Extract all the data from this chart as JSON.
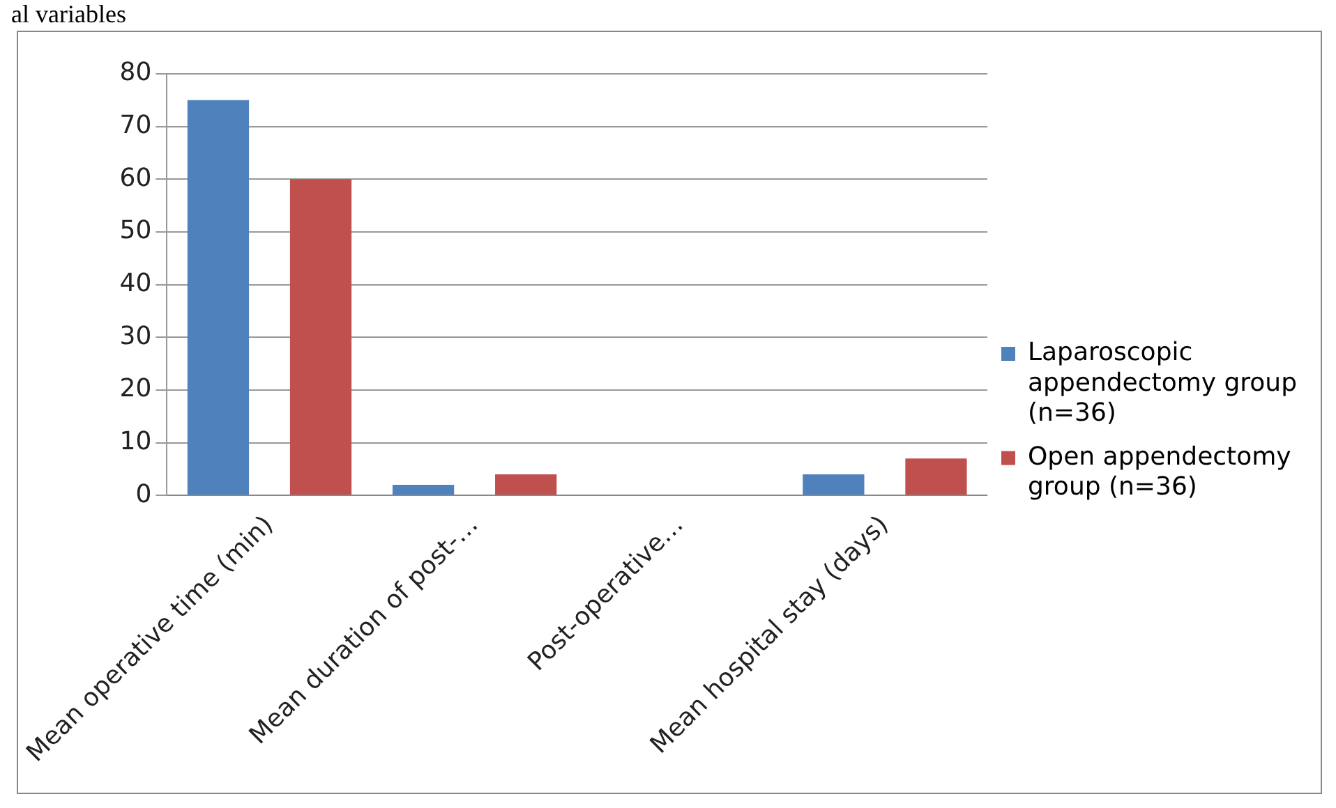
{
  "chart_data": {
    "type": "bar",
    "annotations": [
      "al variables"
    ],
    "categories": [
      "Mean operative time (min)",
      "Mean duration of post-…",
      "Post-operative…",
      "Mean hospital stay (days)"
    ],
    "series": [
      {
        "name": "Laparoscopic appendectomy group (n=36)",
        "color": "#4f81bd",
        "values": [
          75,
          2,
          0,
          4
        ]
      },
      {
        "name": "Open appendectomy group (n=36)",
        "color": "#c0504d",
        "values": [
          60,
          4,
          0,
          7
        ]
      }
    ],
    "ylim": [
      0,
      80
    ],
    "yticks": [
      0,
      10,
      20,
      30,
      40,
      50,
      60,
      70,
      80
    ],
    "grid": "y",
    "legend": "right"
  }
}
